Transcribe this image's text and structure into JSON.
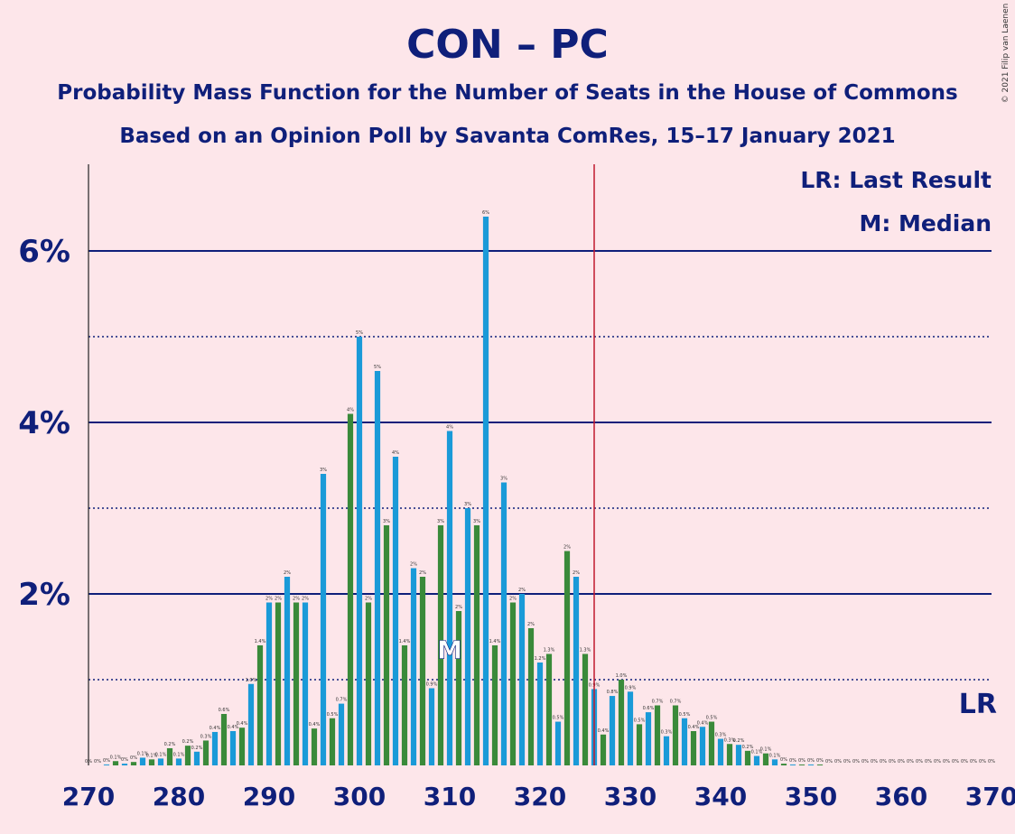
{
  "title": "CON – PC",
  "subtitle1": "Probability Mass Function for the Number of Seats in the House of Commons",
  "subtitle2": "Based on an Opinion Poll by Savanta ComRes, 15–17 January 2021",
  "copyright": "© 2021 Filip van Laenen",
  "colors": {
    "background": "#fde6ea",
    "blue_bar": "#1a9ad8",
    "green_bar": "#3a8a3a",
    "axis_text": "#0f1f7a",
    "last_result_line": "#c0182e"
  },
  "legend": {
    "last_result": "LR: Last Result",
    "median": "M: Median"
  },
  "chart_data": {
    "type": "bar",
    "xlim": [
      270,
      370
    ],
    "ylim": [
      0,
      7
    ],
    "yticks": [
      {
        "value": 2,
        "label": "2%"
      },
      {
        "value": 4,
        "label": "4%"
      },
      {
        "value": 6,
        "label": "6%"
      }
    ],
    "dotted_gridlines": [
      1,
      3,
      5
    ],
    "xticks": [
      270,
      280,
      290,
      300,
      310,
      320,
      330,
      340,
      350,
      360,
      370
    ],
    "last_result": 326,
    "last_result_label": "LR",
    "median": 310,
    "median_label": "M",
    "seats": [
      270,
      271,
      272,
      273,
      274,
      275,
      276,
      277,
      278,
      279,
      280,
      281,
      282,
      283,
      284,
      285,
      286,
      287,
      288,
      289,
      290,
      291,
      292,
      293,
      294,
      295,
      296,
      297,
      298,
      299,
      300,
      301,
      302,
      303,
      304,
      305,
      306,
      307,
      308,
      309,
      310,
      311,
      312,
      313,
      314,
      315,
      316,
      317,
      318,
      319,
      320,
      321,
      322,
      323,
      324,
      325,
      326,
      327,
      328,
      329,
      330,
      331,
      332,
      333,
      334,
      335,
      336,
      337,
      338,
      339,
      340,
      341,
      342,
      343,
      344,
      345,
      346,
      347,
      348,
      349,
      350,
      351,
      352,
      353,
      354,
      355,
      356,
      357,
      358,
      359,
      360,
      361,
      362,
      363,
      364,
      365,
      366,
      367,
      368,
      369,
      370
    ],
    "values": [
      0,
      0,
      0.01,
      0.05,
      0.02,
      0.04,
      0.09,
      0.07,
      0.08,
      0.2,
      0.08,
      0.23,
      0.16,
      0.29,
      0.39,
      0.6,
      0.4,
      0.44,
      0.95,
      1.4,
      1.9,
      1.9,
      2.2,
      1.9,
      1.9,
      0.43,
      3.4,
      0.55,
      0.72,
      4.1,
      5,
      1.9,
      4.6,
      2.8,
      3.6,
      1.4,
      2.3,
      2.2,
      0.9,
      2.8,
      3.9,
      1.8,
      3,
      2.8,
      6.4,
      1.4,
      3.3,
      1.9,
      2,
      1.6,
      1.2,
      1.3,
      0.51,
      2.5,
      2.2,
      1.3,
      0.89,
      0.36,
      0.81,
      1,
      0.86,
      0.48,
      0.62,
      0.7,
      0.34,
      0.7,
      0.55,
      0.4,
      0.45,
      0.51,
      0.31,
      0.25,
      0.24,
      0.17,
      0.11,
      0.14,
      0.07,
      0.02,
      0.01,
      0.01,
      0.01,
      0.01,
      0,
      0,
      0,
      0,
      0,
      0,
      0,
      0,
      0,
      0,
      0,
      0,
      0,
      0,
      0,
      0,
      0,
      0,
      0
    ],
    "labels": [
      "0%",
      "0%",
      "0%",
      "0.1%",
      "0%",
      "0%",
      "0.1%",
      "0.1%",
      "0.1%",
      "0.2%",
      "0.1%",
      "0.2%",
      "0.2%",
      "0.3%",
      "0.4%",
      "0.6%",
      "0.4%",
      "0.4%",
      "1.0%",
      "1.4%",
      "2%",
      "2%",
      "2%",
      "2%",
      "2%",
      "0.4%",
      "3%",
      "0.5%",
      "0.7%",
      "4%",
      "5%",
      "2%",
      "5%",
      "3%",
      "4%",
      "1.4%",
      "2%",
      "2%",
      "0.9%",
      "3%",
      "4%",
      "2%",
      "3%",
      "3%",
      "6%",
      "1.4%",
      "3%",
      "2%",
      "2%",
      "2%",
      "1.2%",
      "1.3%",
      "0.5%",
      "2%",
      "2%",
      "1.3%",
      "0.9%",
      "0.4%",
      "0.8%",
      "1.0%",
      "0.9%",
      "0.5%",
      "0.6%",
      "0.7%",
      "0.3%",
      "0.7%",
      "0.5%",
      "0.4%",
      "0.4%",
      "0.5%",
      "0.3%",
      "0.3%",
      "0.2%",
      "0.2%",
      "0.1%",
      "0.1%",
      "0.1%",
      "0%",
      "0%",
      "0%",
      "0%",
      "0%",
      "0%",
      "0%",
      "0%",
      "0%",
      "0%",
      "0%",
      "0%",
      "0%",
      "0%",
      "0%",
      "0%",
      "0%",
      "0%",
      "0%",
      "0%",
      "0%",
      "0%",
      "0%",
      "0%"
    ]
  }
}
